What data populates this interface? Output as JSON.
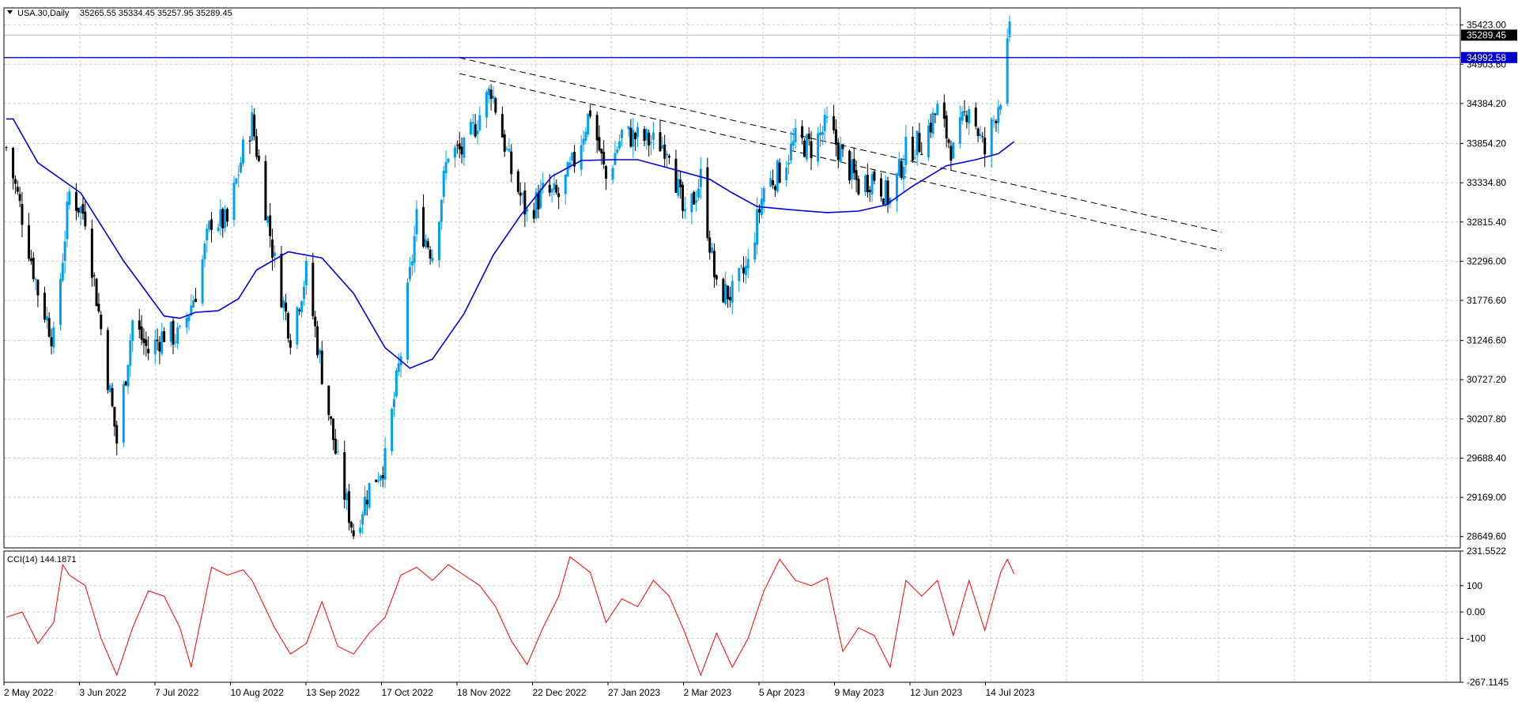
{
  "header": {
    "symbol": "USA.30,Daily",
    "ohlc": "35265.55 35334.45 35257.95 35289.45"
  },
  "indicator": {
    "label": "CCI(14) 144.1871",
    "yticks": [
      "231.5522",
      "100",
      "0.00",
      "-100",
      "-267.1145"
    ],
    "line_color": "#ff0000"
  },
  "price_axis": {
    "ticks": [
      "35423.00",
      "34903.60",
      "34384.20",
      "33854.20",
      "33334.80",
      "32815.40",
      "32296.00",
      "31776.60",
      "31246.60",
      "30727.20",
      "30207.80",
      "29688.40",
      "29169.00",
      "28649.60"
    ],
    "current_price_label": "35289.45",
    "hline_label": "34992.58",
    "hline_color": "#0000cc"
  },
  "time_axis": {
    "labels": [
      "2 May 2022",
      "3 Jun 2022",
      "7 Jul 2022",
      "10 Aug 2022",
      "13 Sep 2022",
      "17 Oct 2022",
      "18 Nov 2022",
      "22 Dec 2022",
      "27 Jan 2023",
      "2 Mar 2023",
      "5 Apr 2023",
      "9 May 2023",
      "12 Jun 2023",
      "14 Jul 2023"
    ]
  },
  "colors": {
    "bull_candle": "#00a0f0",
    "bear_candle": "#000000",
    "moving_average": "#0000dd",
    "trendline": "#000000",
    "grid": "#c8c8c8"
  },
  "chart_data": {
    "type": "line",
    "subtype": "candlestick with moving average and CCI(14) oscillator",
    "symbol": "USA.30",
    "timeframe": "Daily",
    "x_range": [
      "2022-04-29",
      "2023-07-18"
    ],
    "price_range": [
      28500,
      35650
    ],
    "cci_range": [
      -267.1145,
      231.5522
    ],
    "grid": true,
    "close_path": [
      [
        "2022-04-29",
        33800
      ],
      [
        "2022-05-06",
        32900
      ],
      [
        "2022-05-13",
        31900
      ],
      [
        "2022-05-20",
        31250
      ],
      [
        "2022-05-27",
        33200
      ],
      [
        "2022-06-03",
        32900
      ],
      [
        "2022-06-10",
        31400
      ],
      [
        "2022-06-17",
        29900
      ],
      [
        "2022-06-24",
        31500
      ],
      [
        "2022-07-01",
        31100
      ],
      [
        "2022-07-08",
        31340
      ],
      [
        "2022-07-15",
        31290
      ],
      [
        "2022-07-22",
        31900
      ],
      [
        "2022-07-29",
        32850
      ],
      [
        "2022-08-05",
        32800
      ],
      [
        "2022-08-12",
        33760
      ],
      [
        "2022-08-16",
        34150
      ],
      [
        "2022-08-26",
        32280
      ],
      [
        "2022-09-02",
        31320
      ],
      [
        "2022-09-09",
        32150
      ],
      [
        "2022-09-16",
        30820
      ],
      [
        "2022-09-23",
        29600
      ],
      [
        "2022-09-30",
        28700
      ],
      [
        "2022-10-07",
        29300
      ],
      [
        "2022-10-14",
        29650
      ],
      [
        "2022-10-21",
        31080
      ],
      [
        "2022-10-28",
        32860
      ],
      [
        "2022-11-04",
        32400
      ],
      [
        "2022-11-11",
        33750
      ],
      [
        "2022-11-18",
        33750
      ],
      [
        "2022-11-30",
        34590
      ],
      [
        "2022-12-09",
        33480
      ],
      [
        "2022-12-16",
        32920
      ],
      [
        "2022-12-23",
        33200
      ],
      [
        "2022-12-30",
        33150
      ],
      [
        "2023-01-06",
        33630
      ],
      [
        "2023-01-13",
        34300
      ],
      [
        "2023-01-20",
        33380
      ],
      [
        "2023-01-27",
        33980
      ],
      [
        "2023-02-03",
        33930
      ],
      [
        "2023-02-10",
        33870
      ],
      [
        "2023-02-17",
        33830
      ],
      [
        "2023-02-24",
        32800
      ],
      [
        "2023-03-03",
        33400
      ],
      [
        "2023-03-10",
        31900
      ],
      [
        "2023-03-17",
        31860
      ],
      [
        "2023-03-24",
        32240
      ],
      [
        "2023-03-31",
        33270
      ],
      [
        "2023-04-07",
        33480
      ],
      [
        "2023-04-14",
        33890
      ],
      [
        "2023-04-21",
        33800
      ],
      [
        "2023-04-28",
        34100
      ],
      [
        "2023-05-05",
        33670
      ],
      [
        "2023-05-12",
        33300
      ],
      [
        "2023-05-19",
        33430
      ],
      [
        "2023-05-26",
        33090
      ],
      [
        "2023-06-02",
        33760
      ],
      [
        "2023-06-09",
        33880
      ],
      [
        "2023-06-16",
        34300
      ],
      [
        "2023-06-23",
        33730
      ],
      [
        "2023-06-30",
        34400
      ],
      [
        "2023-07-07",
        33730
      ],
      [
        "2023-07-14",
        34500
      ],
      [
        "2023-07-18",
        35290
      ]
    ],
    "moving_average": [
      [
        "2022-04-29",
        34180
      ],
      [
        "2022-05-02",
        34180
      ],
      [
        "2022-05-13",
        33600
      ],
      [
        "2022-06-01",
        33200
      ],
      [
        "2022-06-20",
        32300
      ],
      [
        "2022-07-08",
        31570
      ],
      [
        "2022-07-15",
        31540
      ],
      [
        "2022-07-22",
        31620
      ],
      [
        "2022-08-01",
        31640
      ],
      [
        "2022-08-10",
        31800
      ],
      [
        "2022-08-18",
        32180
      ],
      [
        "2022-09-01",
        32420
      ],
      [
        "2022-09-16",
        32340
      ],
      [
        "2022-09-30",
        31870
      ],
      [
        "2022-10-14",
        31150
      ],
      [
        "2022-10-25",
        30880
      ],
      [
        "2022-11-04",
        31000
      ],
      [
        "2022-11-18",
        31600
      ],
      [
        "2022-12-01",
        32380
      ],
      [
        "2022-12-13",
        32900
      ],
      [
        "2022-12-27",
        33420
      ],
      [
        "2023-01-09",
        33630
      ],
      [
        "2023-01-23",
        33640
      ],
      [
        "2023-02-03",
        33640
      ],
      [
        "2023-02-13",
        33560
      ],
      [
        "2023-02-24",
        33470
      ],
      [
        "2023-03-07",
        33380
      ],
      [
        "2023-03-17",
        33200
      ],
      [
        "2023-03-28",
        33020
      ],
      [
        "2023-04-11",
        32980
      ],
      [
        "2023-04-28",
        32940
      ],
      [
        "2023-05-12",
        32960
      ],
      [
        "2023-05-24",
        33040
      ],
      [
        "2023-06-05",
        33290
      ],
      [
        "2023-06-20",
        33560
      ],
      [
        "2023-07-03",
        33640
      ],
      [
        "2023-07-13",
        33720
      ],
      [
        "2023-07-20",
        33880
      ]
    ],
    "cci_path": [
      [
        "2022-04-29",
        -20
      ],
      [
        "2022-05-06",
        0
      ],
      [
        "2022-05-13",
        -120
      ],
      [
        "2022-05-20",
        -40
      ],
      [
        "2022-05-24",
        180
      ],
      [
        "2022-05-27",
        140
      ],
      [
        "2022-06-03",
        100
      ],
      [
        "2022-06-10",
        -100
      ],
      [
        "2022-06-17",
        -240
      ],
      [
        "2022-06-24",
        -60
      ],
      [
        "2022-07-01",
        80
      ],
      [
        "2022-07-08",
        60
      ],
      [
        "2022-07-15",
        -60
      ],
      [
        "2022-07-20",
        -210
      ],
      [
        "2022-07-29",
        170
      ],
      [
        "2022-08-05",
        140
      ],
      [
        "2022-08-12",
        160
      ],
      [
        "2022-08-16",
        120
      ],
      [
        "2022-08-26",
        -60
      ],
      [
        "2022-09-02",
        -160
      ],
      [
        "2022-09-09",
        -120
      ],
      [
        "2022-09-16",
        40
      ],
      [
        "2022-09-23",
        -130
      ],
      [
        "2022-09-30",
        -160
      ],
      [
        "2022-10-07",
        -80
      ],
      [
        "2022-10-14",
        -20
      ],
      [
        "2022-10-21",
        140
      ],
      [
        "2022-10-28",
        170
      ],
      [
        "2022-11-04",
        120
      ],
      [
        "2022-11-11",
        180
      ],
      [
        "2022-11-18",
        140
      ],
      [
        "2022-11-25",
        100
      ],
      [
        "2022-12-02",
        20
      ],
      [
        "2022-12-09",
        -110
      ],
      [
        "2022-12-16",
        -200
      ],
      [
        "2022-12-23",
        -60
      ],
      [
        "2022-12-30",
        60
      ],
      [
        "2023-01-04",
        210
      ],
      [
        "2023-01-13",
        150
      ],
      [
        "2023-01-20",
        -40
      ],
      [
        "2023-01-27",
        50
      ],
      [
        "2023-02-03",
        20
      ],
      [
        "2023-02-10",
        120
      ],
      [
        "2023-02-17",
        60
      ],
      [
        "2023-02-24",
        -80
      ],
      [
        "2023-03-03",
        -240
      ],
      [
        "2023-03-10",
        -80
      ],
      [
        "2023-03-17",
        -210
      ],
      [
        "2023-03-24",
        -100
      ],
      [
        "2023-03-31",
        80
      ],
      [
        "2023-04-07",
        200
      ],
      [
        "2023-04-14",
        120
      ],
      [
        "2023-04-21",
        100
      ],
      [
        "2023-04-28",
        130
      ],
      [
        "2023-05-05",
        -150
      ],
      [
        "2023-05-12",
        -60
      ],
      [
        "2023-05-19",
        -90
      ],
      [
        "2023-05-26",
        -210
      ],
      [
        "2023-06-02",
        120
      ],
      [
        "2023-06-09",
        60
      ],
      [
        "2023-06-16",
        120
      ],
      [
        "2023-06-23",
        -90
      ],
      [
        "2023-06-30",
        120
      ],
      [
        "2023-07-07",
        -70
      ],
      [
        "2023-07-14",
        150
      ],
      [
        "2023-07-17",
        200
      ],
      [
        "2023-07-20",
        144
      ]
    ],
    "horizontal_line": 34992.58,
    "current_price": 35289.45,
    "trendlines": [
      {
        "style": "dashed",
        "from": [
          "2022-11-16",
          34990
        ],
        "to": [
          "2023-10-20",
          32680
        ]
      },
      {
        "style": "dashed",
        "from": [
          "2022-11-16",
          34780
        ],
        "to": [
          "2023-10-20",
          32440
        ]
      }
    ]
  }
}
